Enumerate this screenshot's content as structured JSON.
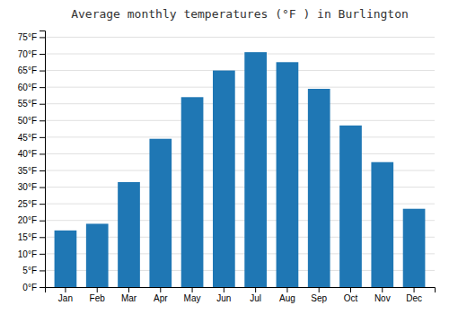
{
  "chart_data": {
    "type": "bar",
    "title": "Average monthly temperatures (°F ) in Burlington",
    "categories": [
      "Jan",
      "Feb",
      "Mar",
      "Apr",
      "May",
      "Jun",
      "Jul",
      "Aug",
      "Sep",
      "Oct",
      "Nov",
      "Dec"
    ],
    "values": [
      17.0,
      19.0,
      31.5,
      44.5,
      57.0,
      65.0,
      70.5,
      67.5,
      59.5,
      48.5,
      37.5,
      23.5
    ],
    "ylim": [
      0,
      77
    ],
    "yticks": [
      {
        "value": 0,
        "label": "0°F"
      },
      {
        "value": 5,
        "label": "5°F"
      },
      {
        "value": 10,
        "label": "10°F"
      },
      {
        "value": 15,
        "label": "15°F"
      },
      {
        "value": 20,
        "label": "20°F"
      },
      {
        "value": 25,
        "label": "25°F"
      },
      {
        "value": 30,
        "label": "30°F"
      },
      {
        "value": 35,
        "label": "35°F"
      },
      {
        "value": 40,
        "label": "40°F"
      },
      {
        "value": 45,
        "label": "45°F"
      },
      {
        "value": 50,
        "label": "50°F"
      },
      {
        "value": 55,
        "label": "55°F"
      },
      {
        "value": 60,
        "label": "60°F"
      },
      {
        "value": 65,
        "label": "65°F"
      },
      {
        "value": 70,
        "label": "70°F"
      },
      {
        "value": 75,
        "label": "75°F"
      }
    ],
    "grid": true
  }
}
